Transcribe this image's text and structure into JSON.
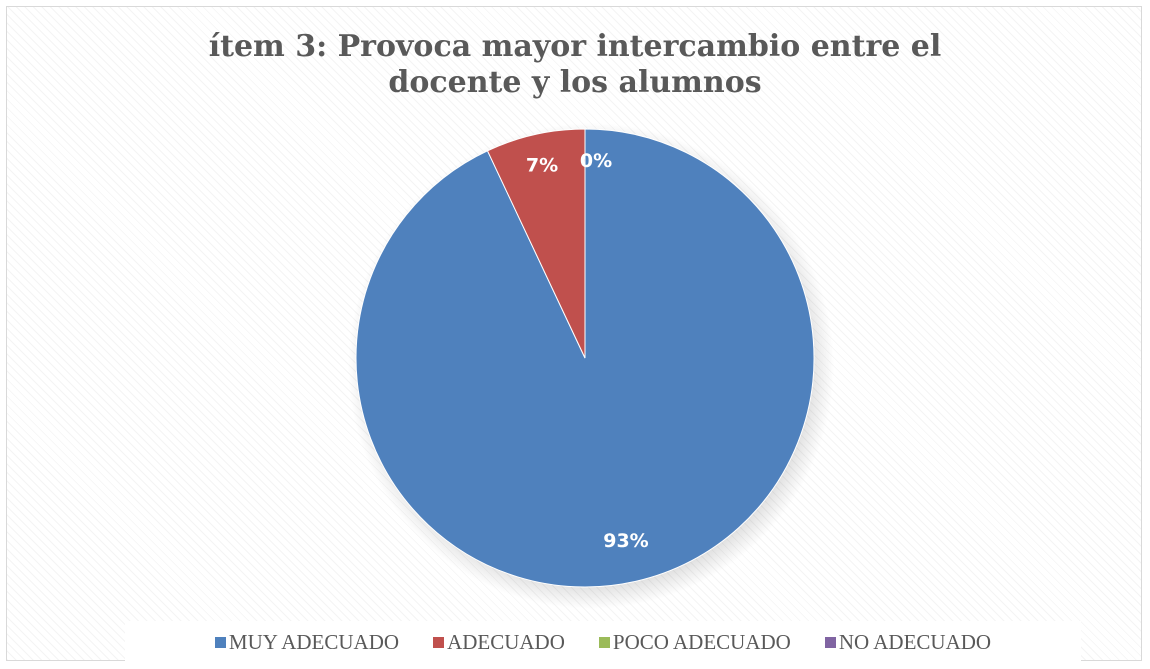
{
  "chart_data": {
    "type": "pie",
    "title": "ítem 3: Provoca mayor intercambio entre el docente y los alumnos",
    "categories": [
      "MUY ADECUADO",
      "ADECUADO",
      "POCO ADECUADO",
      "NO ADECUADO"
    ],
    "values": [
      93,
      7,
      0,
      0
    ],
    "data_labels": [
      "93%",
      "7%",
      "0%",
      ""
    ],
    "colors": [
      "#4f81bd",
      "#c0504d",
      "#9bbb59",
      "#8064a2"
    ],
    "legend_position": "bottom"
  }
}
